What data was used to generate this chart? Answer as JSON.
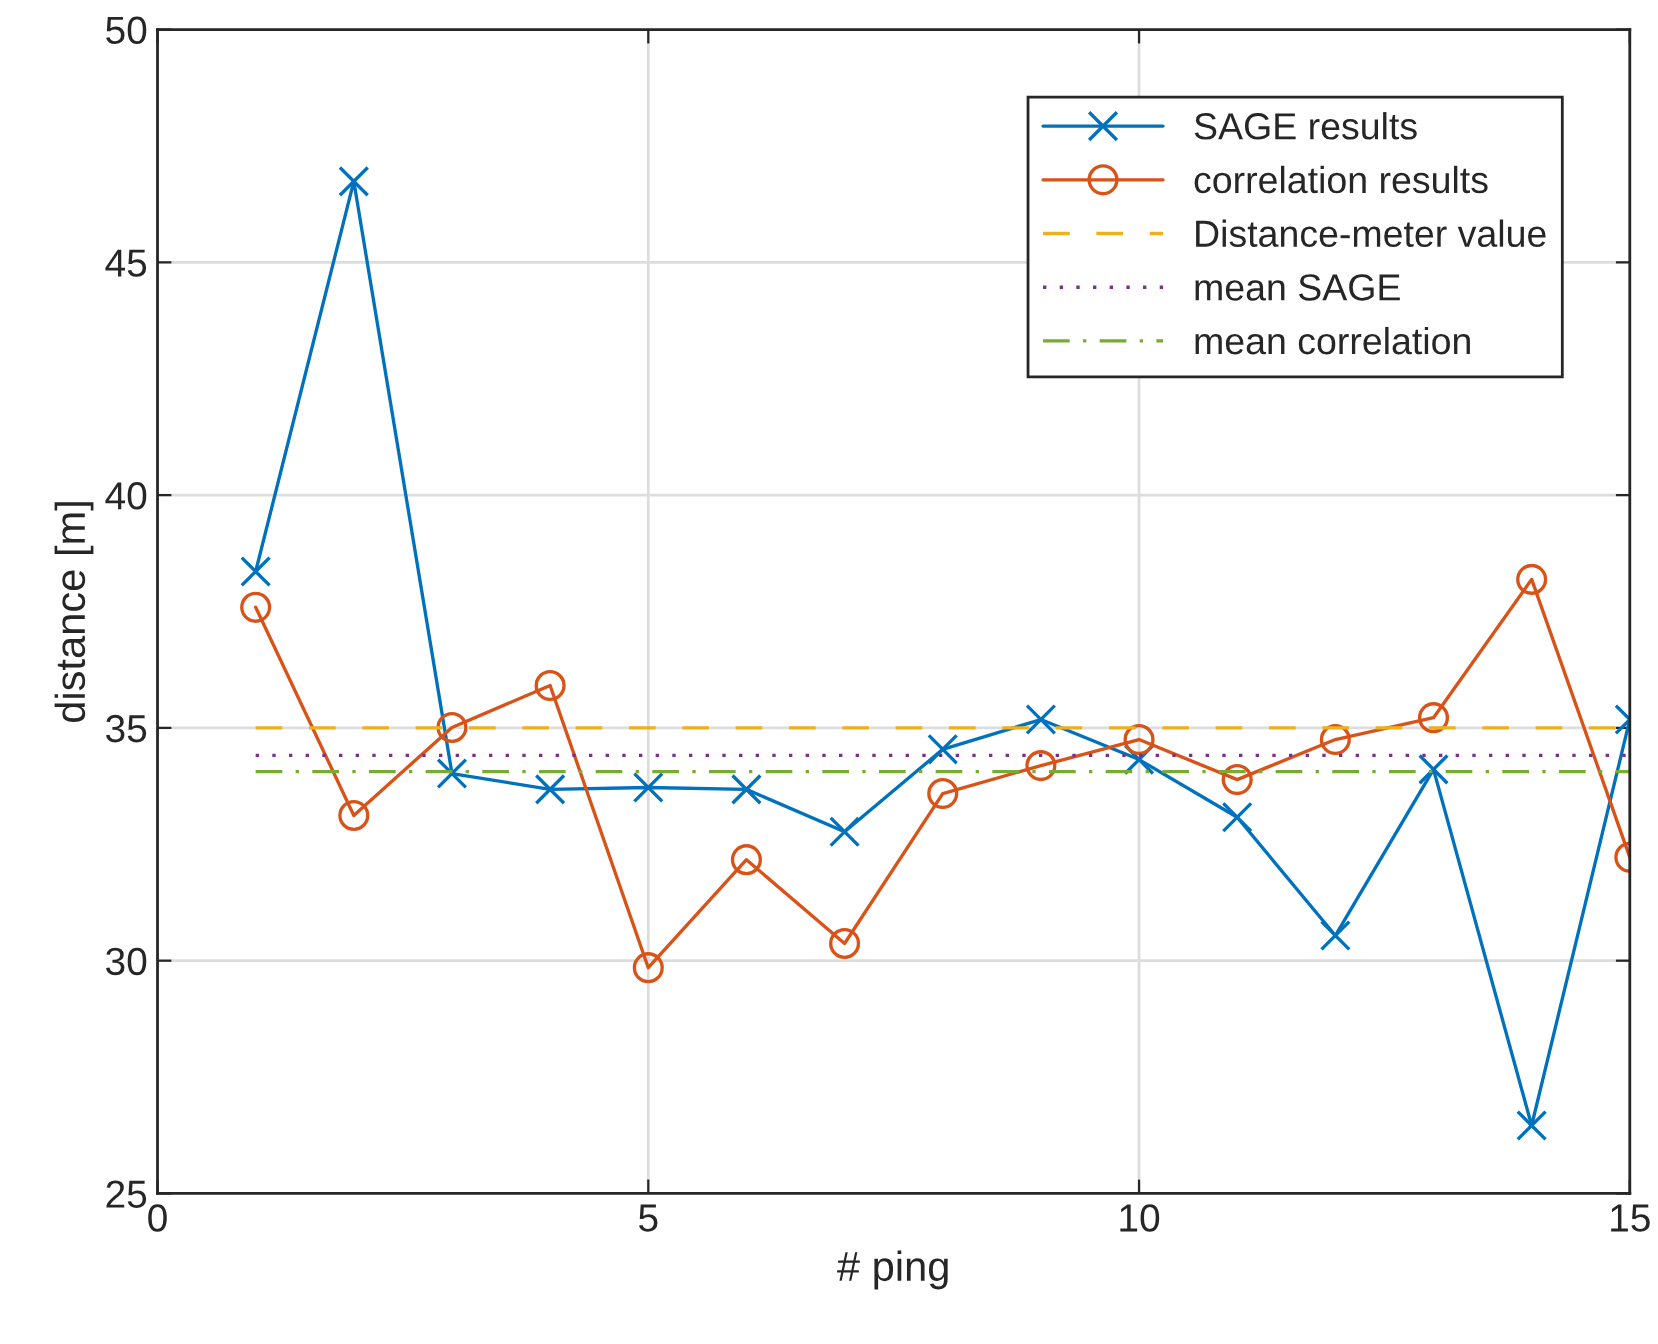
{
  "chart_data": {
    "type": "line",
    "xlabel": "# ping",
    "ylabel": "distance [m]",
    "x": [
      1,
      2,
      3,
      4,
      5,
      6,
      7,
      8,
      9,
      10,
      11,
      12,
      13,
      14,
      15
    ],
    "series": [
      {
        "name": "SAGE results",
        "color": "#0072bd",
        "marker": "cross",
        "line_style": "solid",
        "values": [
          38.36,
          46.74,
          34.02,
          33.68,
          33.72,
          33.68,
          32.77,
          34.54,
          35.18,
          34.32,
          33.08,
          30.54,
          34.11,
          26.46,
          35.18
        ]
      },
      {
        "name": "correlation results",
        "color": "#d95319",
        "marker": "circle",
        "line_style": "solid",
        "values": [
          37.59,
          33.12,
          35.01,
          35.91,
          29.85,
          32.17,
          30.37,
          33.59,
          34.19,
          34.75,
          33.89,
          34.75,
          35.22,
          38.19,
          32.22
        ]
      },
      {
        "name": "Distance-meter value",
        "color": "#edb120",
        "marker": "none",
        "line_style": "dashed",
        "values": [
          35.0,
          35.0,
          35.0,
          35.0,
          35.0,
          35.0,
          35.0,
          35.0,
          35.0,
          35.0,
          35.0,
          35.0,
          35.0,
          35.0,
          35.0
        ]
      },
      {
        "name": "mean SAGE",
        "color": "#7e2f8e",
        "marker": "none",
        "line_style": "dotted",
        "values": [
          34.41,
          34.41,
          34.41,
          34.41,
          34.41,
          34.41,
          34.41,
          34.41,
          34.41,
          34.41,
          34.41,
          34.41,
          34.41,
          34.41,
          34.41
        ]
      },
      {
        "name": "mean correlation",
        "color": "#77ac30",
        "marker": "none",
        "line_style": "dashdot",
        "values": [
          34.06,
          34.06,
          34.06,
          34.06,
          34.06,
          34.06,
          34.06,
          34.06,
          34.06,
          34.06,
          34.06,
          34.06,
          34.06,
          34.06,
          34.06
        ]
      }
    ],
    "xlim": [
      0,
      15
    ],
    "xticks": [
      0,
      5,
      10,
      15
    ],
    "ylim": [
      25,
      50
    ],
    "yticks": [
      25,
      30,
      35,
      40,
      45,
      50
    ],
    "grid": true,
    "legend": "top right"
  }
}
